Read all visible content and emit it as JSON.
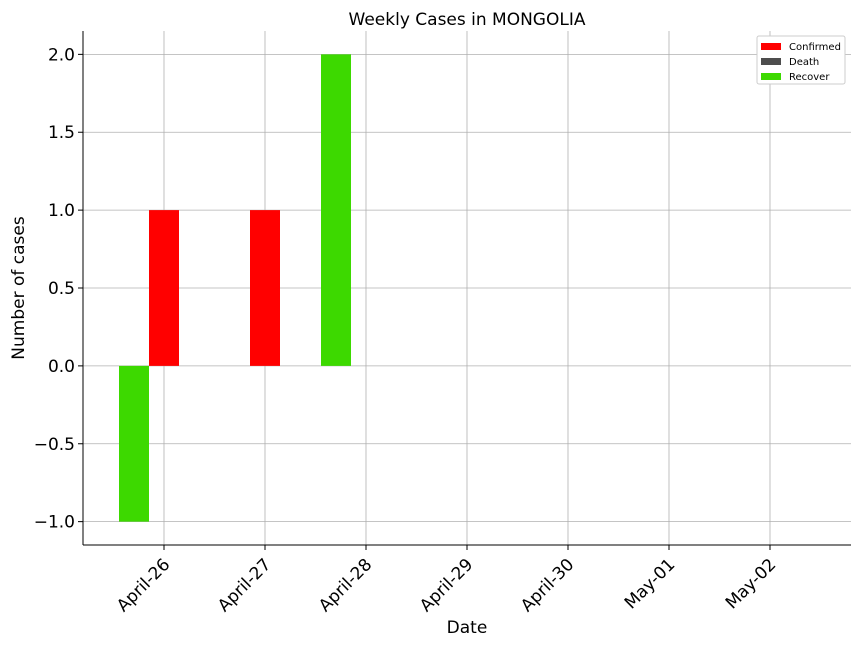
{
  "chart_data": {
    "type": "bar",
    "title": "Weekly Cases in MONGOLIA",
    "xlabel": "Date",
    "ylabel": "Number of cases",
    "categories": [
      "April-26",
      "April-27",
      "April-28",
      "April-29",
      "April-30",
      "May-01",
      "May-02"
    ],
    "ylim": [
      -1.15,
      2.15
    ],
    "yticks": [
      -1.0,
      -0.5,
      0.0,
      0.5,
      1.0,
      1.5,
      2.0
    ],
    "ytick_labels": [
      "−1.0",
      "−0.5",
      "0.0",
      "0.5",
      "1.0",
      "1.5",
      "2.0"
    ],
    "grid": true,
    "legend_position": "top-right",
    "series": [
      {
        "name": "Confirmed",
        "color": "#ff0000",
        "values": [
          1,
          1,
          0,
          0,
          0,
          0,
          0
        ]
      },
      {
        "name": "Death",
        "color": "#4d4d4d",
        "values": [
          0,
          0,
          0,
          0,
          0,
          0,
          0
        ]
      },
      {
        "name": "Recover",
        "color": "#3dd900",
        "values": [
          -1,
          0,
          2,
          0,
          0,
          0,
          0
        ]
      }
    ]
  }
}
